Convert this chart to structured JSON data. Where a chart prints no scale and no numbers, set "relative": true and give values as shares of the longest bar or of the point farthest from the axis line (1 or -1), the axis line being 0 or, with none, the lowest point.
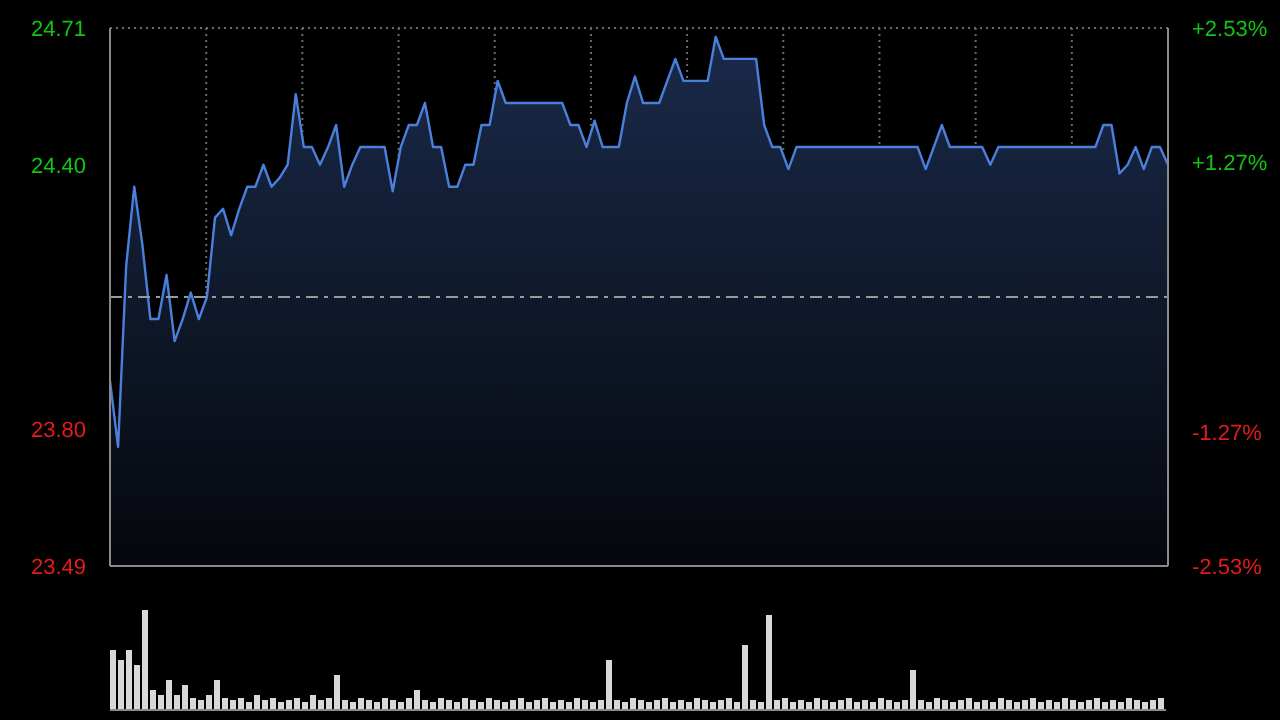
{
  "chart_data": [
    {
      "type": "area",
      "categories": [
        null,
        null,
        null,
        null,
        null,
        null,
        null,
        null,
        null,
        null,
        null,
        null,
        null,
        null,
        null,
        null,
        null,
        null,
        null,
        null,
        null,
        null,
        null,
        null,
        null,
        null,
        null,
        null,
        null,
        null,
        null,
        null,
        null,
        null,
        null,
        null,
        null,
        null,
        null,
        null,
        null,
        null,
        null,
        null,
        null,
        null,
        null,
        null,
        null,
        null,
        null,
        null,
        null,
        null,
        null,
        null,
        null,
        null,
        null,
        null,
        null,
        null,
        null,
        null,
        null,
        null,
        null,
        null,
        null,
        null,
        null,
        null,
        null,
        null,
        null,
        null,
        null,
        null,
        null,
        null,
        null,
        null,
        null,
        null,
        null,
        null,
        null,
        null,
        null,
        null,
        null,
        null,
        null,
        null,
        null,
        null,
        null,
        null,
        null,
        null,
        null,
        null,
        null,
        null,
        null,
        null,
        null,
        null,
        null,
        null,
        null,
        null,
        null,
        null,
        null,
        null,
        null,
        null,
        null,
        null,
        null,
        null,
        null,
        null,
        null,
        null,
        null,
        null,
        null,
        null,
        null,
        null
      ],
      "series": [
        {
          "color": "#4a80dc",
          "values": [
            23.91,
            23.76,
            24.17,
            24.35,
            24.22,
            24.05,
            24.05,
            24.15,
            24.0,
            24.05,
            24.11,
            24.05,
            24.1,
            24.28,
            24.3,
            24.24,
            24.3,
            24.35,
            24.35,
            24.4,
            24.35,
            24.37,
            24.4,
            24.56,
            24.44,
            24.44,
            24.4,
            24.44,
            24.49,
            24.35,
            24.4,
            24.44,
            24.44,
            24.44,
            24.44,
            24.34,
            24.44,
            24.49,
            24.49,
            24.54,
            24.44,
            24.44,
            24.35,
            24.35,
            24.4,
            24.4,
            24.49,
            24.49,
            24.59,
            24.54,
            24.54,
            24.54,
            24.54,
            24.54,
            24.54,
            24.54,
            24.54,
            24.49,
            24.49,
            24.44,
            24.5,
            24.44,
            24.44,
            24.44,
            24.54,
            24.6,
            24.54,
            24.54,
            24.54,
            24.59,
            24.64,
            24.59,
            24.59,
            24.59,
            24.59,
            24.69,
            24.64,
            24.64,
            24.64,
            24.64,
            24.64,
            24.49,
            24.44,
            24.44,
            24.39,
            24.44,
            24.44,
            24.44,
            24.44,
            24.44,
            24.44,
            24.44,
            24.44,
            24.44,
            24.44,
            24.44,
            24.44,
            24.44,
            24.44,
            24.44,
            24.44,
            24.39,
            24.44,
            24.49,
            24.44,
            24.44,
            24.44,
            24.44,
            24.44,
            24.4,
            24.44,
            24.44,
            24.44,
            24.44,
            24.44,
            24.44,
            24.44,
            24.44,
            24.44,
            24.44,
            24.44,
            24.44,
            24.44,
            24.49,
            24.49,
            24.38,
            24.4,
            24.44,
            24.39,
            24.44,
            24.44,
            24.4
          ]
        }
      ],
      "ylim": [
        23.49,
        24.71
      ],
      "yticks": [
        23.49,
        {
          "value": 23.8,
          "label": "23.80"
        },
        {
          "value": 24.4,
          "label": "24.40"
        },
        24.71
      ],
      "y2lim": [
        -2.53,
        2.53
      ],
      "y2ticks": [
        {
          "value": -2.53,
          "label": "-2.53%"
        },
        {
          "value": -1.27,
          "label": "-1.27%"
        },
        {
          "value": 1.27,
          "label": "+1.27%"
        },
        {
          "value": 2.53,
          "label": "+2.53%"
        }
      ],
      "ref_lines": [
        {
          "axis": "y",
          "value": 24.1,
          "color": "#9a9a9a",
          "line_style": "dashed"
        }
      ],
      "grid": true,
      "marker": "none"
    },
    {
      "type": "bar",
      "relative": true,
      "categories": [
        null,
        null,
        null,
        null,
        null,
        null,
        null,
        null,
        null,
        null,
        null,
        null,
        null,
        null,
        null,
        null,
        null,
        null,
        null,
        null,
        null,
        null,
        null,
        null,
        null,
        null,
        null,
        null,
        null,
        null,
        null,
        null,
        null,
        null,
        null,
        null,
        null,
        null,
        null,
        null,
        null,
        null,
        null,
        null,
        null,
        null,
        null,
        null,
        null,
        null,
        null,
        null,
        null,
        null,
        null,
        null,
        null,
        null,
        null,
        null,
        null,
        null,
        null,
        null,
        null,
        null,
        null,
        null,
        null,
        null,
        null,
        null,
        null,
        null,
        null,
        null,
        null,
        null,
        null,
        null,
        null,
        null,
        null,
        null,
        null,
        null,
        null,
        null,
        null,
        null,
        null,
        null,
        null,
        null,
        null,
        null,
        null,
        null,
        null,
        null,
        null,
        null,
        null,
        null,
        null,
        null,
        null,
        null,
        null,
        null,
        null,
        null,
        null,
        null,
        null,
        null,
        null,
        null,
        null,
        null,
        null,
        null,
        null,
        null,
        null,
        null,
        null,
        null,
        null,
        null,
        null,
        null
      ],
      "series": [
        {
          "color": "#d8d8d8",
          "values": [
            0.6,
            0.5,
            0.6,
            0.45,
            1.0,
            0.2,
            0.15,
            0.3,
            0.15,
            0.25,
            0.12,
            0.1,
            0.15,
            0.3,
            0.12,
            0.1,
            0.12,
            0.08,
            0.15,
            0.1,
            0.12,
            0.08,
            0.1,
            0.12,
            0.08,
            0.15,
            0.1,
            0.12,
            0.35,
            0.1,
            0.08,
            0.12,
            0.1,
            0.08,
            0.12,
            0.1,
            0.08,
            0.12,
            0.2,
            0.1,
            0.08,
            0.12,
            0.1,
            0.08,
            0.12,
            0.1,
            0.08,
            0.12,
            0.1,
            0.08,
            0.1,
            0.12,
            0.08,
            0.1,
            0.12,
            0.08,
            0.1,
            0.08,
            0.12,
            0.1,
            0.08,
            0.1,
            0.5,
            0.1,
            0.08,
            0.12,
            0.1,
            0.08,
            0.1,
            0.12,
            0.08,
            0.1,
            0.08,
            0.12,
            0.1,
            0.08,
            0.1,
            0.12,
            0.08,
            0.65,
            0.1,
            0.08,
            0.95,
            0.1,
            0.12,
            0.08,
            0.1,
            0.08,
            0.12,
            0.1,
            0.08,
            0.1,
            0.12,
            0.08,
            0.1,
            0.08,
            0.12,
            0.1,
            0.08,
            0.1,
            0.4,
            0.1,
            0.08,
            0.12,
            0.1,
            0.08,
            0.1,
            0.12,
            0.08,
            0.1,
            0.08,
            0.12,
            0.1,
            0.08,
            0.1,
            0.12,
            0.08,
            0.1,
            0.08,
            0.12,
            0.1,
            0.08,
            0.1,
            0.12,
            0.08,
            0.1,
            0.08,
            0.12,
            0.1,
            0.08,
            0.1,
            0.12
          ]
        }
      ],
      "legend": false
    }
  ]
}
